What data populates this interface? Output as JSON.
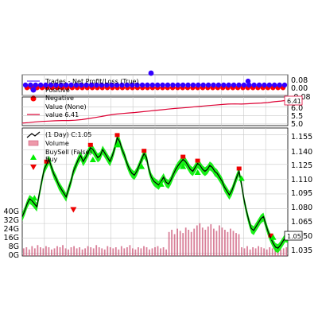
{
  "chart_data": [
    {
      "type": "scatter",
      "panel": "trades",
      "legend": [
        {
          "label": "Trades - Net Profit/Loss (True)",
          "color": "#3300ff"
        },
        {
          "label": "Positive",
          "color": "#3300ff"
        },
        {
          "label": "Negative",
          "color": "#ff0000"
        }
      ],
      "ylim": [
        -0.08,
        0.08
      ],
      "yticks": [
        "0.08",
        "0.00",
        "-0.08"
      ],
      "series": [
        {
          "name": "Positive",
          "color": "#3300ff",
          "y": 0.0
        },
        {
          "name": "Negative",
          "color": "#ff0000",
          "y": -0.02
        }
      ],
      "grid": true
    },
    {
      "type": "line",
      "panel": "value",
      "legend": [
        {
          "label": "Value (None)",
          "color": ""
        },
        {
          "label": "value 6.41",
          "color": "#dd0033"
        }
      ],
      "ylim": [
        4.9,
        6.6
      ],
      "yticks": [
        "6.0",
        "5.5",
        "5.0"
      ],
      "last_value_tag": "6.41",
      "values": [
        5.05,
        5.08,
        5.12,
        5.15,
        5.17,
        5.19,
        5.2,
        5.2,
        5.22,
        5.26,
        5.32,
        5.38,
        5.45,
        5.52,
        5.58,
        5.62,
        5.65,
        5.68,
        5.72,
        5.76,
        5.8,
        5.84,
        5.88,
        5.92,
        5.95,
        5.98,
        6.02,
        6.05,
        6.09,
        6.12,
        6.15,
        6.18,
        6.19,
        6.18,
        6.2,
        6.22,
        6.24,
        6.27,
        6.32,
        6.36,
        6.41
      ],
      "grid": true
    },
    {
      "type": "line",
      "panel": "price",
      "legend": [
        {
          "label": "(1 Day) C:1.05",
          "color": "#000000"
        },
        {
          "label": "Volume",
          "color": "#ee99aa"
        },
        {
          "label": "BuySell (False)",
          "color": ""
        },
        {
          "label": "Buy",
          "color": "#00ee00"
        },
        {
          "label": "Sell",
          "color": "#ee0000"
        }
      ],
      "ylim": [
        1.032,
        1.162
      ],
      "yticks": [
        "1.155",
        "1.140",
        "1.125",
        "1.110",
        "1.095",
        "1.080",
        "1.065",
        "1.050",
        "1.035"
      ],
      "last_value_tag": "1.05",
      "values": [
        1.072,
        1.078,
        1.085,
        1.09,
        1.088,
        1.085,
        1.082,
        1.095,
        1.108,
        1.12,
        1.125,
        1.13,
        1.122,
        1.115,
        1.11,
        1.104,
        1.1,
        1.096,
        1.092,
        1.1,
        1.108,
        1.118,
        1.124,
        1.13,
        1.134,
        1.128,
        1.132,
        1.137,
        1.142,
        1.14,
        1.136,
        1.132,
        1.134,
        1.14,
        1.136,
        1.132,
        1.128,
        1.134,
        1.142,
        1.152,
        1.148,
        1.14,
        1.134,
        1.126,
        1.12,
        1.116,
        1.114,
        1.118,
        1.124,
        1.13,
        1.136,
        1.132,
        1.12,
        1.112,
        1.108,
        1.106,
        1.104,
        1.108,
        1.112,
        1.107,
        1.105,
        1.109,
        1.115,
        1.12,
        1.124,
        1.127,
        1.13,
        1.128,
        1.124,
        1.12,
        1.118,
        1.122,
        1.126,
        1.124,
        1.12,
        1.118,
        1.12,
        1.124,
        1.122,
        1.118,
        1.116,
        1.112,
        1.108,
        1.102,
        1.098,
        1.094,
        1.098,
        1.105,
        1.112,
        1.118,
        1.105,
        1.09,
        1.078,
        1.068,
        1.06,
        1.058,
        1.062,
        1.066,
        1.07,
        1.072,
        1.064,
        1.056,
        1.05,
        1.045,
        1.041,
        1.04,
        1.043,
        1.047,
        1.051,
        1.05
      ],
      "buy_markers": [
        1.098,
        1.137,
        1.152,
        1.13,
        1.112,
        1.13,
        1.124,
        1.118,
        1.058
      ],
      "sell_markers": [
        1.072
      ],
      "grid": true
    },
    {
      "type": "bar",
      "panel": "volume",
      "ylim": [
        0,
        40
      ],
      "yticks": [
        "40G",
        "32G",
        "24G",
        "16G",
        "8G",
        "0G"
      ],
      "values": [
        7,
        8,
        6,
        9,
        7,
        10,
        8,
        7,
        9,
        8,
        6,
        7,
        9,
        8,
        10,
        7,
        6,
        8,
        9,
        7,
        8,
        6,
        7,
        9,
        8,
        7,
        10,
        8,
        7,
        6,
        9,
        8,
        7,
        8,
        6,
        9,
        7,
        8,
        10,
        7,
        6,
        8,
        7,
        9,
        8,
        6,
        7,
        8,
        9,
        7,
        8,
        6,
        22,
        24,
        20,
        25,
        23,
        21,
        26,
        24,
        22,
        25,
        28,
        30,
        26,
        24,
        27,
        29,
        25,
        23,
        28,
        26,
        24,
        22,
        25,
        23,
        21,
        20,
        8,
        7,
        9,
        6,
        8,
        7,
        9,
        8,
        7,
        6,
        8,
        7,
        8,
        9,
        6,
        7,
        8
      ],
      "color": "#cc5577",
      "grid": true
    }
  ]
}
